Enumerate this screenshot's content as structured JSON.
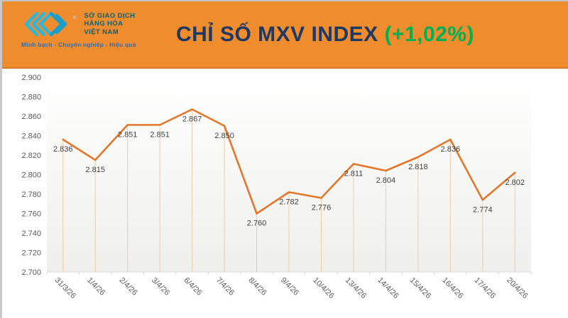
{
  "header": {
    "logo": {
      "org_lines": [
        "SỞ GIAO DỊCH",
        "HÀNG HÓA",
        "VIỆT NAM"
      ],
      "reg_mark": "®",
      "tagline": "Minh bạch - Chuyên nghiệp - Hiệu quả",
      "mark_color_light": "#2eb6db",
      "mark_color_dark": "#1d9ec9",
      "text_color": "#0d5f70",
      "tagline_color": "#2a6ebb"
    },
    "bg_color": "#ef8c2e",
    "title": {
      "main": "CHỈ SỐ MXV INDEX ",
      "change": "(+1,02%)",
      "main_color": "#1f3864",
      "change_color": "#00b050"
    }
  },
  "chart_data": {
    "type": "line",
    "title": "CHỈ SỐ MXV INDEX (+1,02%)",
    "categories": [
      "31/3/26",
      "1/4/26",
      "2/4/26",
      "3/4/26",
      "6/4/26",
      "7/4/26",
      "8/4/26",
      "9/4/26",
      "10/4/26",
      "13/4/26",
      "14/4/26",
      "15/4/26",
      "16/4/26",
      "17/4/26",
      "20/4/26"
    ],
    "values": [
      2836,
      2815,
      2851,
      2851,
      2867,
      2850,
      2760,
      2782,
      2776,
      2811,
      2804,
      2818,
      2836,
      2774,
      2802
    ],
    "point_labels": [
      "2.836",
      "2.815",
      "2.851",
      "2.851",
      "2.867",
      "2.850",
      "2.760",
      "2.782",
      "2.776",
      "2.811",
      "2.804",
      "2.818",
      "2.836",
      "2.774",
      "2.802"
    ],
    "y_tick_values": [
      2700,
      2720,
      2740,
      2760,
      2780,
      2800,
      2820,
      2840,
      2860,
      2880,
      2900
    ],
    "y_tick_labels": [
      "2.700",
      "2.720",
      "2.740",
      "2.760",
      "2.780",
      "2.800",
      "2.820",
      "2.840",
      "2.860",
      "2.880",
      "2.900"
    ],
    "ylim": [
      2700,
      2900
    ],
    "xlabel": "",
    "ylabel": "",
    "grid": false,
    "legend": "none",
    "line_color": "#e2772c",
    "drop_line_color": "#eecba4",
    "axis_color": "#d9d9d9",
    "label_color": "#3f3f3f",
    "plot_bg_top": "#ffffff",
    "plot_bg_bottom": "#efefec"
  }
}
